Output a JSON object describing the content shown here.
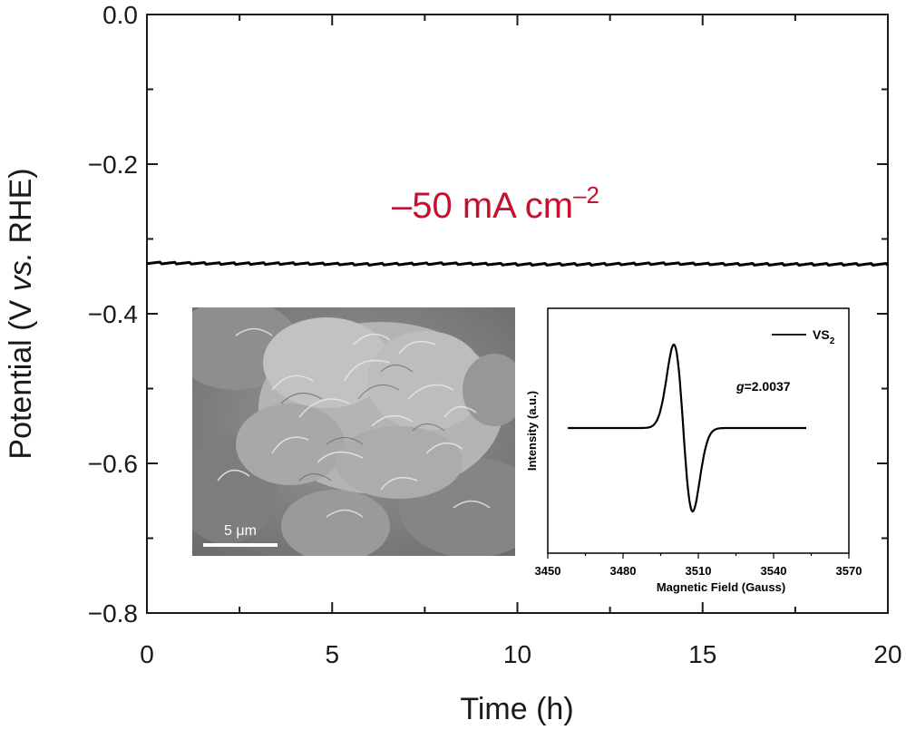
{
  "chart_data": [
    {
      "type": "line",
      "xlabel": "Time (h)",
      "ylabel_parts": [
        "Potential (V ",
        "vs.",
        " RHE)"
      ],
      "xlim": [
        0,
        20
      ],
      "ylim": [
        -0.8,
        0.0
      ],
      "x_ticks": [
        0,
        5,
        10,
        15,
        20
      ],
      "x_tick_labels": [
        "0",
        "5",
        "10",
        "15",
        "20"
      ],
      "y_ticks": [
        0.0,
        -0.2,
        -0.4,
        -0.6,
        -0.8
      ],
      "y_tick_labels": [
        "0.0",
        "−0.2",
        "−0.4",
        "−0.6",
        "−0.8"
      ],
      "annotation": {
        "text": "–50 mA cm",
        "superscript": "–2",
        "color": "#c8102e"
      },
      "series": [
        {
          "color": "#000000",
          "x": [
            0,
            2,
            4,
            6,
            8,
            10,
            12,
            14,
            16,
            18,
            20
          ],
          "y": [
            -0.333,
            -0.334,
            -0.334,
            -0.335,
            -0.334,
            -0.335,
            -0.335,
            -0.334,
            -0.335,
            -0.335,
            -0.335
          ]
        }
      ]
    },
    {
      "type": "line",
      "xlabel": "Magnetic Field (Gauss)",
      "ylabel": "Intensity (a.u.)",
      "xlim": [
        3450,
        3570
      ],
      "x_ticks": [
        3450,
        3480,
        3510,
        3540,
        3570
      ],
      "x_tick_labels": [
        "3450",
        "3480",
        "3510",
        "3540",
        "3570"
      ],
      "legend": {
        "label": "VS",
        "subscript": "2",
        "placement": "top-right"
      },
      "annotation": {
        "italic": "g",
        "text": "=2.0037"
      },
      "series": [
        {
          "color": "#000000",
          "x_center": 3504,
          "peak_separation_gauss": 7.5
        }
      ]
    }
  ],
  "sem_image": {
    "scale_bar_label": "5 μm"
  }
}
